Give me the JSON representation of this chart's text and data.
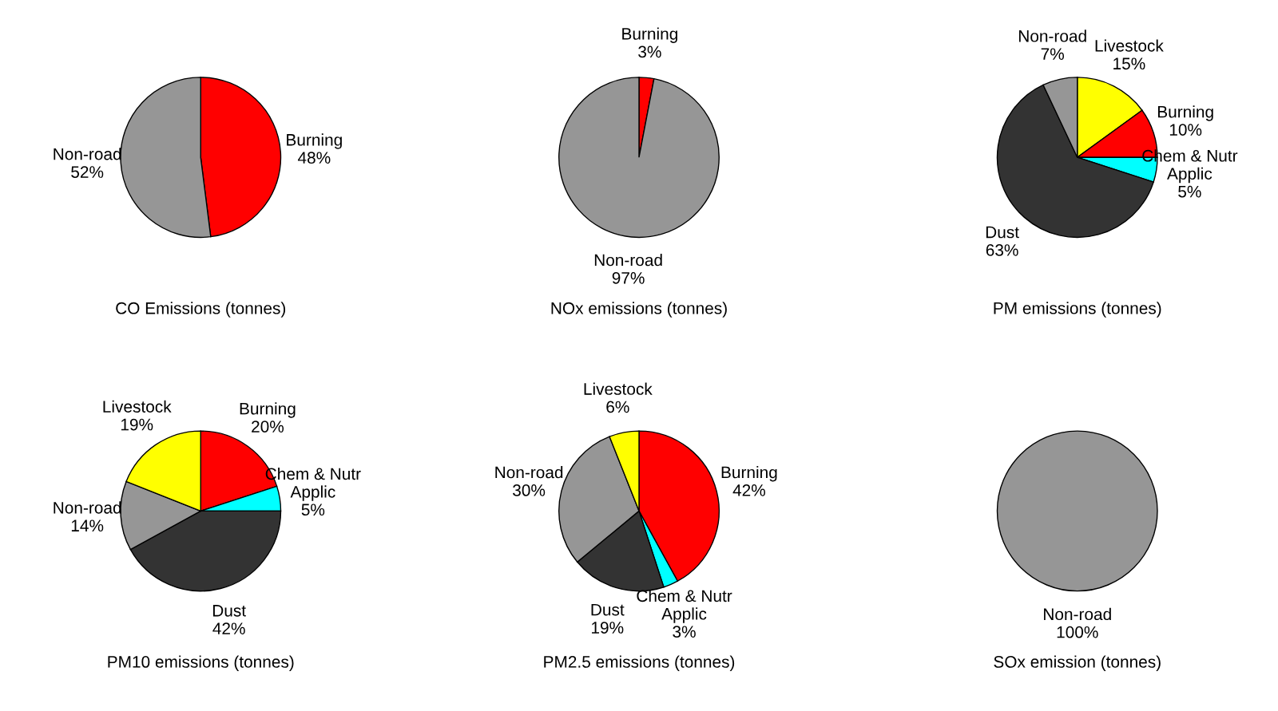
{
  "chart_data": [
    {
      "type": "pie",
      "title": "CO Emissions (tonnes)",
      "categories": [
        "Burning",
        "Non-road"
      ],
      "values": [
        48,
        52
      ],
      "value_labels": [
        "48%",
        "52%"
      ],
      "colors": [
        "#ff0000",
        "#969696"
      ]
    },
    {
      "type": "pie",
      "title": "NOx emissions (tonnes)",
      "categories": [
        "Burning",
        "Non-road"
      ],
      "values": [
        3,
        97
      ],
      "value_labels": [
        "3%",
        "97%"
      ],
      "colors": [
        "#ff0000",
        "#969696"
      ]
    },
    {
      "type": "pie",
      "title": "PM emissions (tonnes)",
      "categories": [
        "Livestock",
        "Burning",
        "Chem & Nutr Applic",
        "Dust",
        "Non-road"
      ],
      "values": [
        15,
        10,
        5,
        63,
        7
      ],
      "value_labels": [
        "15%",
        "10%",
        "5%",
        "63%",
        "7%"
      ],
      "colors": [
        "#ffff00",
        "#ff0000",
        "#00ffff",
        "#333333",
        "#969696"
      ]
    },
    {
      "type": "pie",
      "title": "PM10 emissions (tonnes)",
      "categories": [
        "Burning",
        "Chem & Nutr Applic",
        "Dust",
        "Non-road",
        "Livestock"
      ],
      "values": [
        20,
        5,
        42,
        14,
        19
      ],
      "value_labels": [
        "20%",
        "5%",
        "42%",
        "14%",
        "19%"
      ],
      "colors": [
        "#ff0000",
        "#00ffff",
        "#333333",
        "#969696",
        "#ffff00"
      ]
    },
    {
      "type": "pie",
      "title": "PM2.5 emissions (tonnes)",
      "categories": [
        "Burning",
        "Chem & Nutr Applic",
        "Dust",
        "Non-road",
        "Livestock"
      ],
      "values": [
        42,
        3,
        19,
        30,
        6
      ],
      "value_labels": [
        "42%",
        "3%",
        "19%",
        "30%",
        "6%"
      ],
      "colors": [
        "#ff0000",
        "#00ffff",
        "#333333",
        "#969696",
        "#ffff00"
      ]
    },
    {
      "type": "pie",
      "title": "SOx emission (tonnes)",
      "categories": [
        "Non-road"
      ],
      "values": [
        100
      ],
      "value_labels": [
        "100%"
      ],
      "colors": [
        "#969696"
      ]
    }
  ]
}
